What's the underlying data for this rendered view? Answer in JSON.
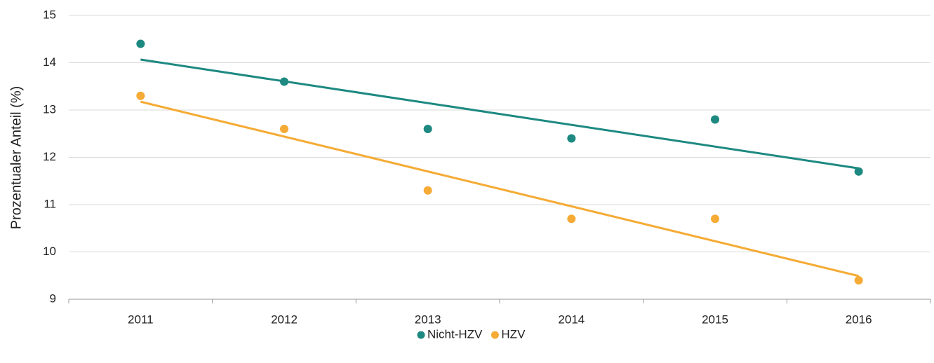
{
  "chart_data": {
    "type": "scatter",
    "ylabel": "Prozentualer Anteil (%)",
    "categories": [
      "2011",
      "2012",
      "2013",
      "2014",
      "2015",
      "2016"
    ],
    "series": [
      {
        "name": "Nicht-HZV",
        "color": "#1d8981",
        "values": [
          14.4,
          13.6,
          12.6,
          12.4,
          12.8,
          11.7
        ]
      },
      {
        "name": "HZV",
        "color": "#f5ab35",
        "values": [
          13.3,
          12.6,
          11.3,
          10.7,
          10.7,
          9.4
        ]
      }
    ],
    "trendline": true,
    "ylim": [
      9,
      15
    ],
    "yticks": [
      9,
      10,
      11,
      12,
      13,
      14,
      15
    ],
    "grid": true,
    "legend": "bottom"
  }
}
